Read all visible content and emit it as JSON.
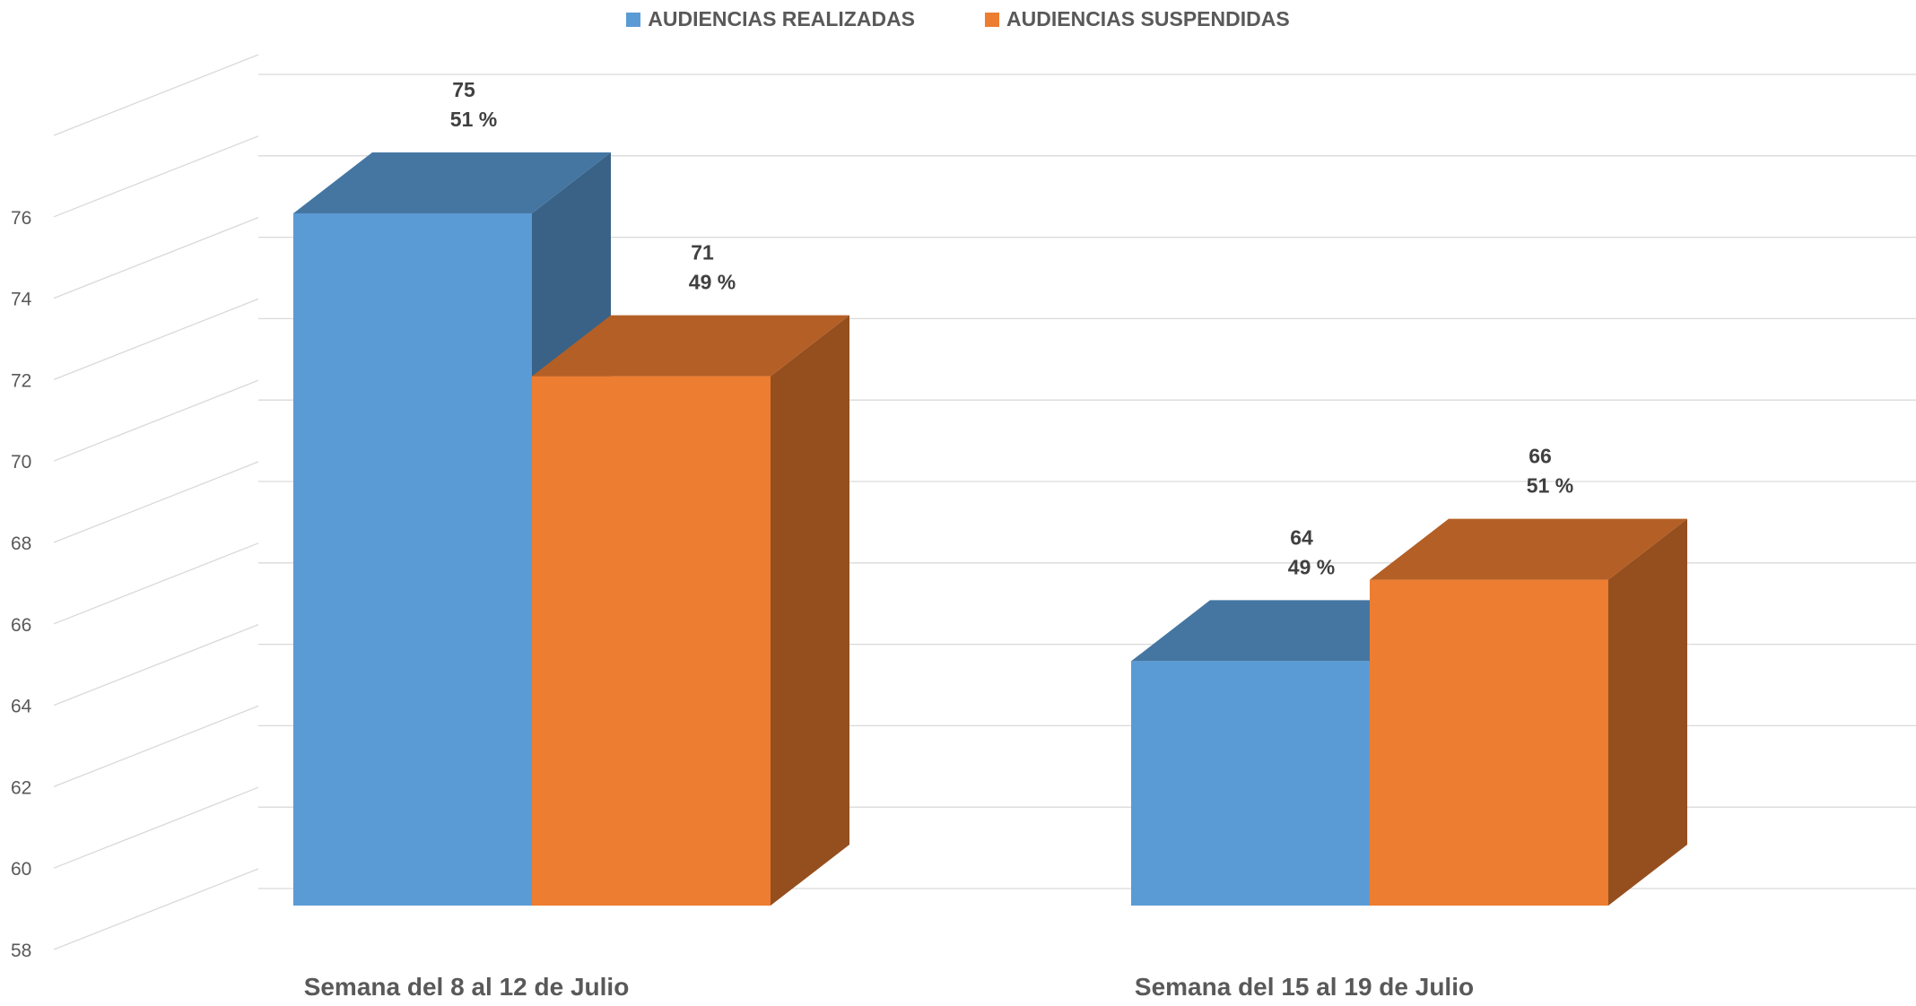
{
  "chart_data": {
    "type": "bar",
    "title": "",
    "categories": [
      "Semana del 8 al 12 de Julio",
      "Semana del 15 al 19 de Julio"
    ],
    "series": [
      {
        "name": "AUDIENCIAS REALIZADAS",
        "values": [
          75,
          64
        ],
        "percent_labels": [
          "51 %",
          "49 %"
        ],
        "color": "#5B9BD5"
      },
      {
        "name": "AUDIENCIAS SUSPENDIDAS",
        "values": [
          71,
          66
        ],
        "percent_labels": [
          "49 %",
          "51 %"
        ],
        "color": "#ED7D31"
      }
    ],
    "ylim": [
      58,
      76
    ],
    "ytick_step": 2,
    "yticks": [
      "58",
      "60",
      "62",
      "64",
      "66",
      "68",
      "70",
      "72",
      "74",
      "76"
    ],
    "grid": true,
    "legend_position": "top-center",
    "style": "3d-clustered-column"
  }
}
